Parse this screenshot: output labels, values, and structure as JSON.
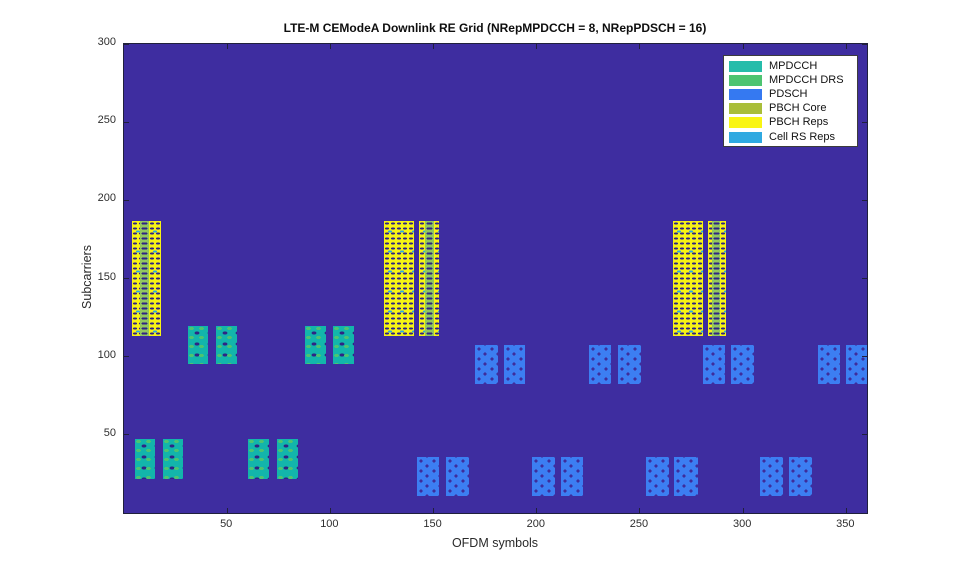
{
  "title": "LTE-M CEModeA Downlink RE Grid (NRepMPDCCH = 8, NRepPDSCH = 16)",
  "axes": {
    "x": {
      "label": "OFDM symbols",
      "min": 0,
      "max": 360,
      "ticks": [
        50,
        100,
        150,
        200,
        250,
        300,
        350
      ]
    },
    "y": {
      "label": "Subcarriers",
      "min": 0,
      "max": 300,
      "ticks": [
        50,
        100,
        150,
        200,
        250,
        300
      ]
    }
  },
  "legend": {
    "entries": [
      {
        "label": "MPDCCH",
        "color": "#26bcaa"
      },
      {
        "label": "MPDCCH DRS",
        "color": "#4dc471"
      },
      {
        "label": "PDSCH",
        "color": "#3579f1"
      },
      {
        "label": "PBCH Core",
        "color": "#a9be39"
      },
      {
        "label": "PBCH Reps",
        "color": "#f9f513"
      },
      {
        "label": "Cell RS Reps",
        "color": "#2fa9e1"
      }
    ]
  },
  "colors": {
    "plot_background": "#3e2da0",
    "axis": "#20203c",
    "mpdcch": "#13b5ab",
    "mpdcch_drs": "#4dc471",
    "pdsch": "#3c7ef2",
    "pbch_core": "#93c75f",
    "pbch_reps": "#f7f315",
    "cell_rs_reps": "#2fa9e1"
  },
  "chart_data": {
    "type": "heatmap",
    "title": "LTE-M CEModeA Downlink RE Grid (NRepMPDCCH = 8, NRepPDSCH = 16)",
    "xlabel": "OFDM symbols",
    "ylabel": "Subcarriers",
    "xlim": [
      0,
      360
    ],
    "ylim": [
      0,
      300
    ],
    "grid": false,
    "legend_position": "top-right",
    "blocks": [
      {
        "kind": "mpdcch",
        "x": 5.5,
        "y": 21.6,
        "w": 9.7,
        "h": 25.5
      },
      {
        "kind": "mpdcch",
        "x": 18.7,
        "y": 21.6,
        "w": 9.7,
        "h": 25.5
      },
      {
        "kind": "mpdcch",
        "x": 60.2,
        "y": 21.6,
        "w": 10.2,
        "h": 25.5
      },
      {
        "kind": "mpdcch",
        "x": 74.1,
        "y": 21.6,
        "w": 10.0,
        "h": 25.5
      },
      {
        "kind": "mpdcch",
        "x": 31.2,
        "y": 95.1,
        "w": 9.6,
        "h": 24.5
      },
      {
        "kind": "mpdcch",
        "x": 44.6,
        "y": 95.1,
        "w": 10.1,
        "h": 24.5
      },
      {
        "kind": "mpdcch",
        "x": 87.7,
        "y": 95.1,
        "w": 10.2,
        "h": 24.5
      },
      {
        "kind": "mpdcch",
        "x": 101.4,
        "y": 95.1,
        "w": 10.2,
        "h": 24.5
      },
      {
        "kind": "pdsch",
        "x": 142.0,
        "y": 10.7,
        "w": 10.8,
        "h": 24.9
      },
      {
        "kind": "pdsch",
        "x": 156.0,
        "y": 10.7,
        "w": 11.3,
        "h": 24.9
      },
      {
        "kind": "pdsch",
        "x": 197.7,
        "y": 10.7,
        "w": 11.1,
        "h": 24.9
      },
      {
        "kind": "pdsch",
        "x": 211.7,
        "y": 10.7,
        "w": 10.8,
        "h": 24.9
      },
      {
        "kind": "pdsch",
        "x": 252.9,
        "y": 10.7,
        "w": 11.0,
        "h": 24.9
      },
      {
        "kind": "pdsch",
        "x": 266.6,
        "y": 10.7,
        "w": 11.3,
        "h": 24.9
      },
      {
        "kind": "pdsch",
        "x": 308.3,
        "y": 10.7,
        "w": 10.8,
        "h": 24.9
      },
      {
        "kind": "pdsch",
        "x": 322.1,
        "y": 10.7,
        "w": 11.1,
        "h": 24.9
      },
      {
        "kind": "pdsch",
        "x": 170.1,
        "y": 82.8,
        "w": 11.0,
        "h": 24.5
      },
      {
        "kind": "pdsch",
        "x": 184.0,
        "y": 82.8,
        "w": 10.4,
        "h": 24.5
      },
      {
        "kind": "pdsch",
        "x": 225.4,
        "y": 82.8,
        "w": 10.6,
        "h": 24.5
      },
      {
        "kind": "pdsch",
        "x": 239.2,
        "y": 82.8,
        "w": 11.3,
        "h": 24.5
      },
      {
        "kind": "pdsch",
        "x": 280.7,
        "y": 82.8,
        "w": 10.6,
        "h": 24.5
      },
      {
        "kind": "pdsch",
        "x": 294.1,
        "y": 82.8,
        "w": 11.3,
        "h": 24.5
      },
      {
        "kind": "pdsch",
        "x": 336.1,
        "y": 82.8,
        "w": 11.0,
        "h": 24.5
      },
      {
        "kind": "pdsch",
        "x": 349.8,
        "y": 82.8,
        "w": 10.8,
        "h": 24.5
      },
      {
        "kind": "pbch-reps",
        "x": 4.0,
        "y": 113,
        "w": 3.6,
        "h": 73.6
      },
      {
        "kind": "pbch-core",
        "x": 7.6,
        "y": 113,
        "w": 4.5,
        "h": 73.6
      },
      {
        "kind": "pbch-reps",
        "x": 12.1,
        "y": 113,
        "w": 5.8,
        "h": 73.6
      },
      {
        "kind": "pbch-reps",
        "x": 126.0,
        "y": 113,
        "w": 14.5,
        "h": 73.6
      },
      {
        "kind": "pbch-reps",
        "x": 143.0,
        "y": 113,
        "w": 2.9,
        "h": 73.6
      },
      {
        "kind": "pbch-core",
        "x": 145.9,
        "y": 113,
        "w": 4.3,
        "h": 73.6
      },
      {
        "kind": "pbch-reps",
        "x": 150.2,
        "y": 113,
        "w": 2.4,
        "h": 73.6
      },
      {
        "kind": "pbch-reps",
        "x": 266.0,
        "y": 113,
        "w": 14.5,
        "h": 73.6
      },
      {
        "kind": "pbch-reps",
        "x": 283.0,
        "y": 113,
        "w": 1.9,
        "h": 73.6
      },
      {
        "kind": "pbch-core",
        "x": 284.9,
        "y": 113,
        "w": 3.9,
        "h": 73.6
      },
      {
        "kind": "pbch-reps",
        "x": 288.8,
        "y": 113,
        "w": 2.9,
        "h": 73.6
      }
    ]
  }
}
